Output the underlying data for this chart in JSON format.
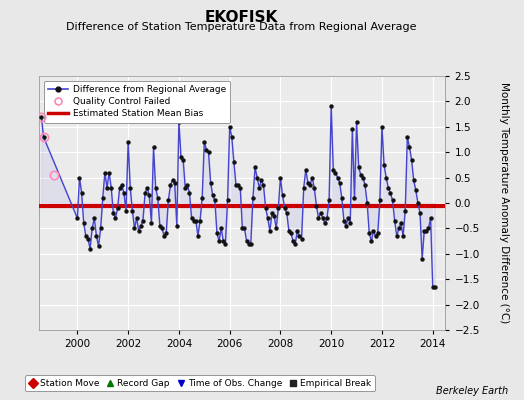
{
  "title": "EKOFISK",
  "subtitle": "Difference of Station Temperature Data from Regional Average",
  "ylabel": "Monthly Temperature Anomaly Difference (°C)",
  "xlim": [
    1998.5,
    2014.5
  ],
  "ylim": [
    -2.5,
    2.5
  ],
  "yticks": [
    -2.5,
    -2,
    -1.5,
    -1,
    -0.5,
    0,
    0.5,
    1,
    1.5,
    2,
    2.5
  ],
  "xticks": [
    2000,
    2002,
    2004,
    2006,
    2008,
    2010,
    2012,
    2014
  ],
  "bias_value": -0.05,
  "line_color": "#4444cc",
  "line_fill_color": "#9999ee",
  "bias_color": "#cc0000",
  "qc_color": "#ff88bb",
  "background_color": "#e8e8e8",
  "plot_background": "#f0f0f0",
  "grid_color": "#d0d0d0",
  "title_fontsize": 11,
  "subtitle_fontsize": 8,
  "axis_fontsize": 7.5,
  "berkeley_earth_text": "Berkeley Earth",
  "time_series": {
    "years": [
      1998.583,
      1998.667,
      2000.0,
      2000.083,
      2000.167,
      2000.25,
      2000.333,
      2000.417,
      2000.5,
      2000.583,
      2000.667,
      2000.75,
      2000.833,
      2000.917,
      2001.0,
      2001.083,
      2001.167,
      2001.25,
      2001.333,
      2001.417,
      2001.5,
      2001.583,
      2001.667,
      2001.75,
      2001.833,
      2001.917,
      2002.0,
      2002.083,
      2002.167,
      2002.25,
      2002.333,
      2002.417,
      2002.5,
      2002.583,
      2002.667,
      2002.75,
      2002.833,
      2002.917,
      2003.0,
      2003.083,
      2003.167,
      2003.25,
      2003.333,
      2003.417,
      2003.5,
      2003.583,
      2003.667,
      2003.75,
      2003.833,
      2003.917,
      2004.0,
      2004.083,
      2004.167,
      2004.25,
      2004.333,
      2004.417,
      2004.5,
      2004.583,
      2004.667,
      2004.75,
      2004.833,
      2004.917,
      2005.0,
      2005.083,
      2005.167,
      2005.25,
      2005.333,
      2005.417,
      2005.5,
      2005.583,
      2005.667,
      2005.75,
      2005.833,
      2005.917,
      2006.0,
      2006.083,
      2006.167,
      2006.25,
      2006.333,
      2006.417,
      2006.5,
      2006.583,
      2006.667,
      2006.75,
      2006.833,
      2006.917,
      2007.0,
      2007.083,
      2007.167,
      2007.25,
      2007.333,
      2007.417,
      2007.5,
      2007.583,
      2007.667,
      2007.75,
      2007.833,
      2007.917,
      2008.0,
      2008.083,
      2008.167,
      2008.25,
      2008.333,
      2008.417,
      2008.5,
      2008.583,
      2008.667,
      2008.75,
      2008.833,
      2008.917,
      2009.0,
      2009.083,
      2009.167,
      2009.25,
      2009.333,
      2009.417,
      2009.5,
      2009.583,
      2009.667,
      2009.75,
      2009.833,
      2009.917,
      2010.0,
      2010.083,
      2010.167,
      2010.25,
      2010.333,
      2010.417,
      2010.5,
      2010.583,
      2010.667,
      2010.75,
      2010.833,
      2010.917,
      2011.0,
      2011.083,
      2011.167,
      2011.25,
      2011.333,
      2011.417,
      2011.5,
      2011.583,
      2011.667,
      2011.75,
      2011.833,
      2011.917,
      2012.0,
      2012.083,
      2012.167,
      2012.25,
      2012.333,
      2012.417,
      2012.5,
      2012.583,
      2012.667,
      2012.75,
      2012.833,
      2012.917,
      2013.0,
      2013.083,
      2013.167,
      2013.25,
      2013.333,
      2013.417,
      2013.5,
      2013.583,
      2013.667,
      2013.75,
      2013.833,
      2013.917,
      2014.0,
      2014.083
    ],
    "values": [
      1.7,
      1.3,
      -0.3,
      0.5,
      0.2,
      -0.4,
      -0.65,
      -0.7,
      -0.9,
      -0.5,
      -0.3,
      -0.65,
      -0.85,
      -0.5,
      0.1,
      0.6,
      0.3,
      0.6,
      0.3,
      -0.2,
      -0.3,
      -0.1,
      0.3,
      0.35,
      0.2,
      -0.15,
      1.2,
      0.3,
      -0.15,
      -0.5,
      -0.3,
      -0.55,
      -0.45,
      -0.35,
      0.2,
      0.3,
      0.15,
      -0.4,
      1.1,
      0.3,
      0.1,
      -0.45,
      -0.5,
      -0.65,
      -0.6,
      0.05,
      0.35,
      0.45,
      0.4,
      -0.45,
      1.6,
      0.9,
      0.85,
      0.3,
      0.35,
      0.2,
      -0.3,
      -0.35,
      -0.35,
      -0.65,
      -0.35,
      0.1,
      1.2,
      1.05,
      1.0,
      0.4,
      0.15,
      0.05,
      -0.6,
      -0.75,
      -0.5,
      -0.75,
      -0.8,
      0.05,
      1.5,
      1.3,
      0.8,
      0.35,
      0.35,
      0.3,
      -0.5,
      -0.5,
      -0.75,
      -0.8,
      -0.8,
      0.1,
      0.7,
      0.5,
      0.3,
      0.45,
      0.35,
      -0.1,
      -0.3,
      -0.55,
      -0.2,
      -0.25,
      -0.5,
      -0.1,
      0.5,
      0.15,
      -0.1,
      -0.2,
      -0.55,
      -0.6,
      -0.75,
      -0.8,
      -0.55,
      -0.65,
      -0.7,
      0.3,
      0.65,
      0.4,
      0.35,
      0.5,
      0.3,
      -0.05,
      -0.3,
      -0.2,
      -0.3,
      -0.4,
      -0.3,
      0.05,
      1.9,
      0.65,
      0.6,
      0.5,
      0.4,
      0.1,
      -0.35,
      -0.45,
      -0.3,
      -0.4,
      1.45,
      0.1,
      1.6,
      0.7,
      0.55,
      0.5,
      0.35,
      -0.0,
      -0.6,
      -0.75,
      -0.55,
      -0.65,
      -0.6,
      0.05,
      1.5,
      0.75,
      0.5,
      0.3,
      0.2,
      0.05,
      -0.35,
      -0.65,
      -0.5,
      -0.4,
      -0.65,
      -0.15,
      1.3,
      1.1,
      0.85,
      0.45,
      0.25,
      0.0,
      -0.2,
      -1.1,
      -0.55,
      -0.55,
      -0.5,
      -0.3,
      -1.65,
      -1.65
    ]
  },
  "qc_failed_points": [
    {
      "year": 1998.583,
      "value": 1.7
    },
    {
      "year": 1998.667,
      "value": 1.3
    },
    {
      "year": 1999.083,
      "value": 0.55
    }
  ]
}
